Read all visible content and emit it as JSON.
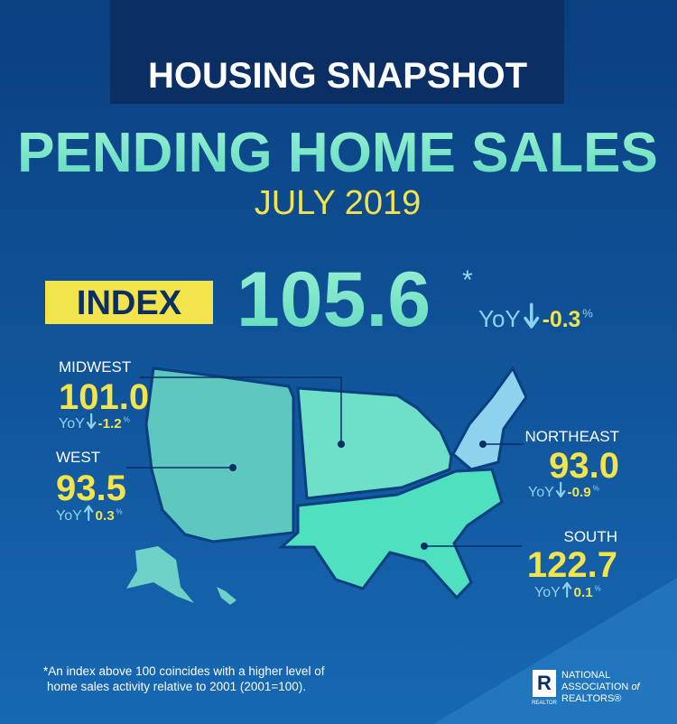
{
  "header": {
    "banner": "HOUSING SNAPSHOT",
    "title": "PENDING HOME SALES",
    "period": "JULY 2019"
  },
  "index": {
    "label": "INDEX",
    "value": "105.6",
    "asterisk": "*",
    "yoy_label": "YoY",
    "direction": "down",
    "yoy_change": "-0.3",
    "unit": "%"
  },
  "regions": [
    {
      "name": "MIDWEST",
      "value": "101.0",
      "yoy_label": "YoY",
      "direction": "down",
      "yoy_change": "-1.2",
      "unit": "%"
    },
    {
      "name": "WEST",
      "value": "93.5",
      "yoy_label": "YoY",
      "direction": "up",
      "yoy_change": "0.3",
      "unit": "%"
    },
    {
      "name": "NORTHEAST",
      "value": "93.0",
      "yoy_label": "YoY",
      "direction": "down",
      "yoy_change": "-0.9",
      "unit": "%"
    },
    {
      "name": "SOUTH",
      "value": "122.7",
      "yoy_label": "YoY",
      "direction": "up",
      "yoy_change": "0.1",
      "unit": "%"
    }
  ],
  "footnote": [
    "*An index above 100 coincides with a higher level of",
    "home sales activity relative to 2001 (2001=100)."
  ],
  "logo": {
    "mark": "REALTOR",
    "line1": "NATIONAL",
    "line2": "ASSOCIATION",
    "of": "of",
    "line3": "REALTORS®"
  }
}
